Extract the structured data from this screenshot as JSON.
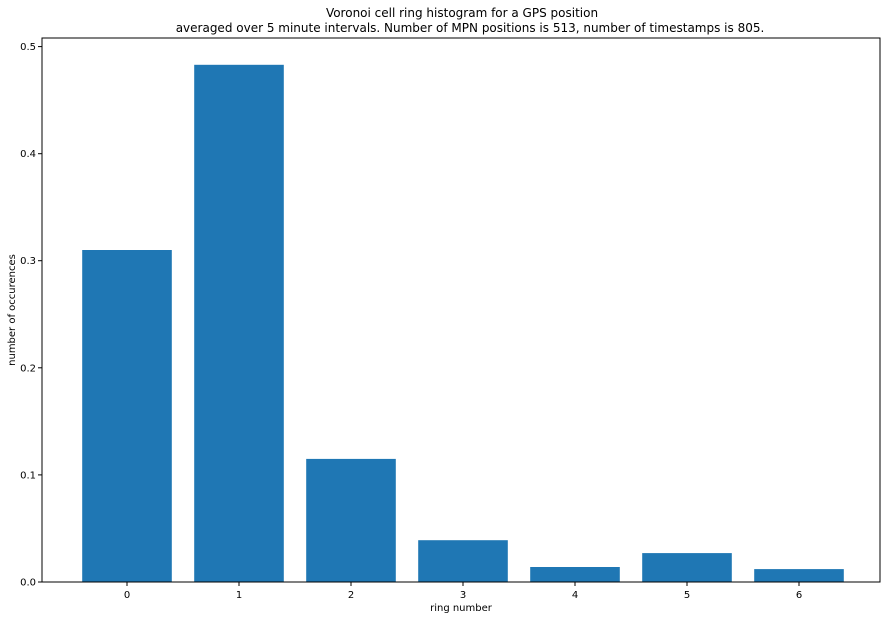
{
  "chart_data": {
    "type": "bar",
    "title_line1": "Voronoi cell ring histogram for a GPS position",
    "title_line2": "averaged over 5 minute intervals. Number of MPN positions is 513,  number of timestamps is 805.",
    "xlabel": "ring number",
    "ylabel": "number of occurences",
    "categories": [
      "0",
      "1",
      "2",
      "3",
      "4",
      "5",
      "6"
    ],
    "values": [
      0.31,
      0.483,
      0.115,
      0.039,
      0.014,
      0.027,
      0.012
    ],
    "ylim": [
      0,
      0.508
    ],
    "yticks": [
      0.0,
      0.1,
      0.2,
      0.3,
      0.4,
      0.5
    ],
    "ytick_labels": [
      "0.0",
      "0.1",
      "0.2",
      "0.3",
      "0.4",
      "0.5"
    ],
    "bar_color": "#1f77b4",
    "grid": false,
    "legend": "none"
  }
}
